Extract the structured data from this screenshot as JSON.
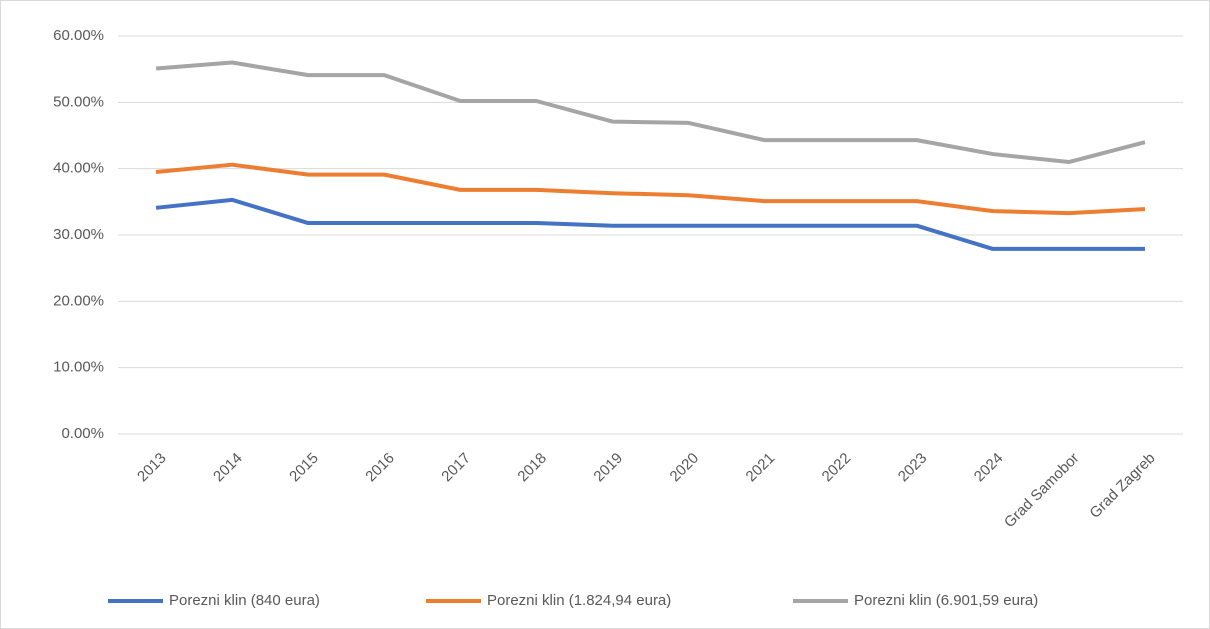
{
  "chart_data": {
    "type": "line",
    "categories": [
      "2013",
      "2014",
      "2015",
      "2016",
      "2017",
      "2018",
      "2019",
      "2020",
      "2021",
      "2022",
      "2023",
      "2024",
      "Grad Samobor",
      "Grad Zagreb"
    ],
    "series": [
      {
        "name": "Porezni klin (840 eura)",
        "color": "#4472c4",
        "values": [
          34.1,
          35.3,
          31.8,
          31.8,
          31.8,
          31.8,
          31.4,
          31.4,
          31.4,
          31.4,
          31.4,
          27.9,
          27.9,
          27.9
        ]
      },
      {
        "name": "Porezni klin (1.824,94 eura)",
        "color": "#ed7d31",
        "values": [
          39.5,
          40.6,
          39.1,
          39.1,
          36.8,
          36.8,
          36.3,
          36.0,
          35.1,
          35.1,
          35.1,
          33.6,
          33.3,
          33.9
        ]
      },
      {
        "name": "Porezni klin (6.901,59 eura)",
        "color": "#a5a5a5",
        "values": [
          55.1,
          56.0,
          54.1,
          54.1,
          50.2,
          50.2,
          47.1,
          46.9,
          44.3,
          44.3,
          44.3,
          42.2,
          41.0,
          44.0
        ]
      }
    ],
    "ylim": [
      0,
      60
    ],
    "yticks": [
      {
        "value": 0,
        "label": "0.00%"
      },
      {
        "value": 10,
        "label": "10.00%"
      },
      {
        "value": 20,
        "label": "20.00%"
      },
      {
        "value": 30,
        "label": "30.00%"
      },
      {
        "value": 40,
        "label": "40.00%"
      },
      {
        "value": 50,
        "label": "50.00%"
      },
      {
        "value": 60,
        "label": "60.00%"
      }
    ],
    "grid": true,
    "legend": "bottom"
  }
}
